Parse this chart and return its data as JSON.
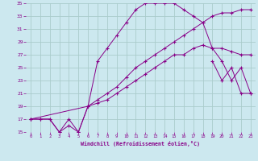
{
  "xlabel": "Windchill (Refroidissement éolien,°C)",
  "bg_color": "#cce8ef",
  "grid_color": "#aacccc",
  "line_color": "#880088",
  "xlim": [
    -0.5,
    23.5
  ],
  "ylim": [
    15,
    35
  ],
  "yticks": [
    15,
    17,
    19,
    21,
    23,
    25,
    27,
    29,
    31,
    33,
    35
  ],
  "xticks": [
    0,
    1,
    2,
    3,
    4,
    5,
    6,
    7,
    8,
    9,
    10,
    11,
    12,
    13,
    14,
    15,
    16,
    17,
    18,
    19,
    20,
    21,
    22,
    23
  ],
  "s1_x": [
    0,
    1,
    2,
    3,
    4,
    5,
    6,
    7,
    8,
    9,
    10,
    11,
    12,
    13,
    14,
    15,
    16,
    17,
    18,
    19,
    20,
    21,
    22,
    23
  ],
  "s1_y": [
    17,
    17,
    17,
    15,
    16,
    15,
    19,
    19.5,
    20,
    21,
    22,
    23,
    24,
    25,
    26,
    27,
    27,
    28,
    28.5,
    28,
    28,
    27.5,
    27,
    27
  ],
  "s2_x": [
    0,
    1,
    2,
    3,
    4,
    5,
    6,
    7,
    8,
    9,
    10,
    11,
    12,
    13,
    14,
    15,
    16,
    17,
    18,
    19,
    20,
    21,
    22,
    23
  ],
  "s2_y": [
    17,
    17,
    17,
    15,
    17,
    15,
    19,
    20,
    21,
    22,
    23.5,
    25,
    26,
    27,
    28,
    29,
    30,
    31,
    32,
    33,
    33.5,
    33.5,
    34,
    34
  ],
  "s3_x": [
    0,
    6,
    7,
    8,
    9,
    10,
    11,
    12,
    13,
    14,
    15,
    16,
    17,
    18,
    19,
    20,
    21,
    22,
    23
  ],
  "s3_y": [
    17,
    19,
    26,
    28,
    30,
    32,
    34,
    35,
    35,
    35,
    35,
    34,
    33,
    32,
    28,
    26,
    23,
    25,
    21
  ],
  "s4_x": [
    19,
    20,
    21,
    22,
    23
  ],
  "s4_y": [
    26,
    23,
    25,
    21,
    21
  ]
}
